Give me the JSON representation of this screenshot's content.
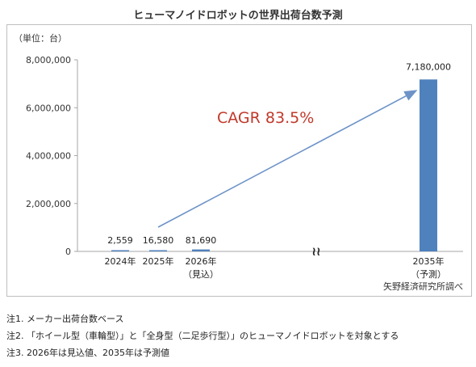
{
  "title": "ヒューマノイドロボットの世界出荷台数予測",
  "unit_label": "（単位：台）",
  "source": "矢野経済研究所調べ",
  "cagr_label": "CAGR 83.5%",
  "break_mark": "≀≀",
  "notes": [
    "注1. メーカー出荷台数ベース",
    "注2. 「ホイール型（車輪型）」と「全身型（二足歩行型）」のヒューマノイドロボットを対象とする",
    "注3. 2026年は見込値、2035年は予測値"
  ],
  "colors": {
    "bar": "#4f81bd",
    "arrow": "#6d93c8",
    "cagr": "#c0392b",
    "axis": "#a6a6a6"
  },
  "chart_data": {
    "type": "bar",
    "categories": [
      [
        "2024年"
      ],
      [
        "2025年"
      ],
      [
        "2026年",
        "（見込）"
      ],
      [
        "2035年",
        "（予測）"
      ]
    ],
    "values": [
      2559,
      16580,
      81690,
      7180000
    ],
    "data_labels": [
      "2,559",
      "16,580",
      "81,690",
      "7,180,000"
    ],
    "ylim": [
      0,
      8000000
    ],
    "yticks": [
      "0",
      "2,000,000",
      "4,000,000",
      "6,000,000",
      "8,000,000"
    ],
    "ytick_values": [
      0,
      2000000,
      4000000,
      6000000,
      8000000
    ],
    "grid": false,
    "axis_break": "between 2026年 and 2035年"
  }
}
